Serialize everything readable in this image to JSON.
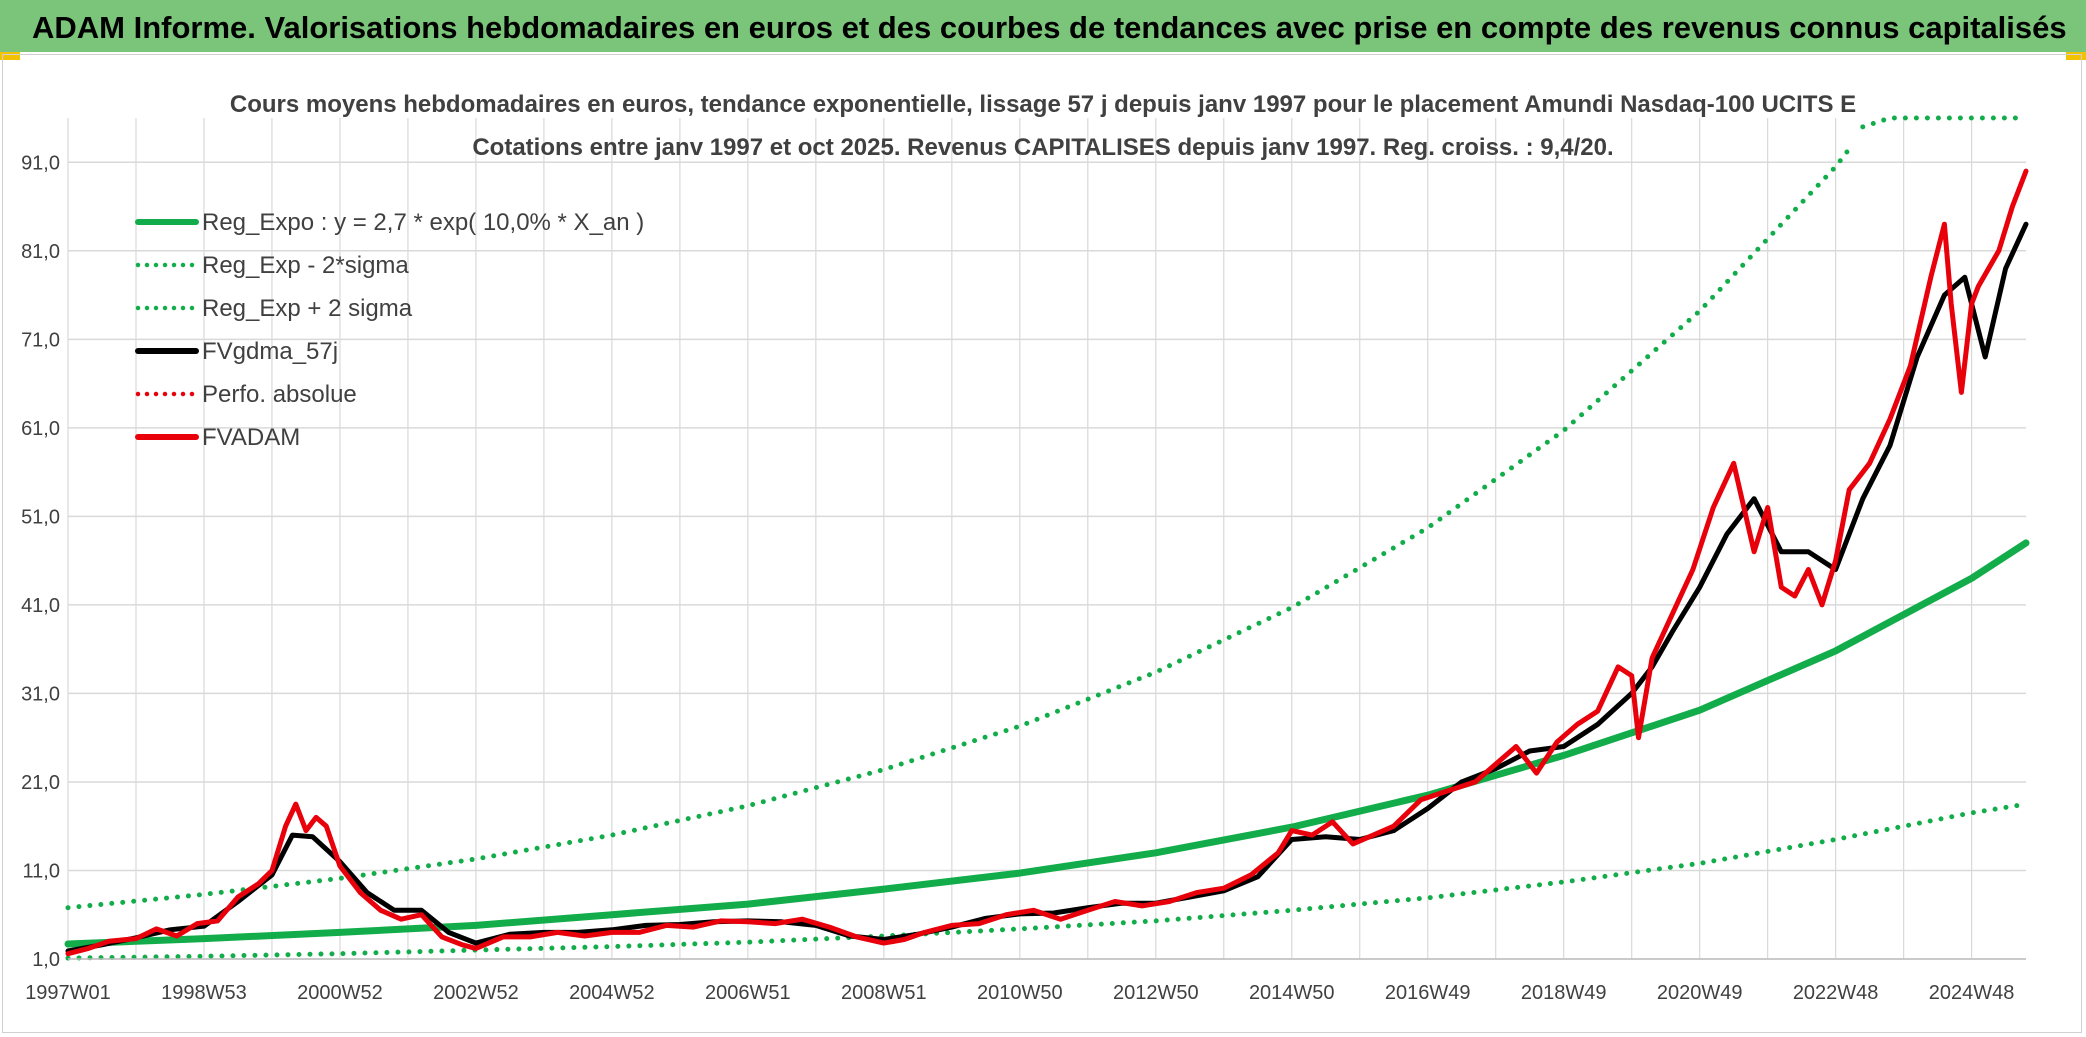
{
  "banner": {
    "title": "ADAM Informe. Valorisations hebdomadaires en euros et des courbes de tendances avec prise en compte des revenus connus capitalisés"
  },
  "colors": {
    "banner_bg": "#7ac57a",
    "green": "#12ad4a",
    "black": "#000000",
    "red": "#e8000b",
    "grid": "#d9d9d9",
    "text": "#404040"
  },
  "chart_data": {
    "type": "line",
    "title": "Cours moyens hebdomadaires en euros, tendance exponentielle, lissage 57 j depuis janv 1997 pour le placement Amundi Nasdaq-100 UCITS E",
    "subtitle": "Cotations entre janv 1997 et oct 2025. Revenus CAPITALISES depuis janv 1997. Reg. croiss. : 9,4/20.",
    "xlabel": "",
    "ylabel": "",
    "xlim": [
      1997.0,
      2025.8
    ],
    "ylim": [
      1.0,
      96.0
    ],
    "y_ticks": [
      "1,0",
      "11,0",
      "21,0",
      "31,0",
      "41,0",
      "51,0",
      "61,0",
      "71,0",
      "81,0",
      "91,0"
    ],
    "y_tick_values": [
      1,
      11,
      21,
      31,
      41,
      51,
      61,
      71,
      81,
      91
    ],
    "x_ticks": [
      "1997W01",
      "1998W53",
      "2000W52",
      "2002W52",
      "2004W52",
      "2006W51",
      "2008W51",
      "2010W50",
      "2012W50",
      "2014W50",
      "2016W49",
      "2018W49",
      "2020W49",
      "2022W48",
      "2024W48"
    ],
    "x_tick_values": [
      1997.0,
      1999.0,
      2001.0,
      2003.0,
      2005.0,
      2007.0,
      2009.0,
      2011.0,
      2013.0,
      2015.0,
      2017.0,
      2019.0,
      2021.0,
      2023.0,
      2025.0
    ],
    "legend": [
      {
        "label": "Reg_Expo : y = 2,7 * exp( 10,0% *  X_an )",
        "style": "solid",
        "color": "#12ad4a"
      },
      {
        "label": "Reg_Exp - 2*sigma",
        "style": "dotted",
        "color": "#12ad4a"
      },
      {
        "label": "Reg_Exp + 2 sigma",
        "style": "dotted",
        "color": "#12ad4a"
      },
      {
        "label": "FVgdma_57j",
        "style": "solid",
        "color": "#000000"
      },
      {
        "label": "Perfo. absolue",
        "style": "dotted",
        "color": "#e8000b"
      },
      {
        "label": "FVADAM",
        "style": "solid",
        "color": "#e8000b"
      }
    ],
    "legend_position": "top-left",
    "series": [
      {
        "name": "Reg_Expo",
        "style": "solid",
        "color": "#12ad4a",
        "x": [
          1997.0,
          1999.0,
          2001.0,
          2003.0,
          2005.0,
          2007.0,
          2009.0,
          2011.0,
          2013.0,
          2015.0,
          2017.0,
          2019.0,
          2021.0,
          2023.0,
          2025.0,
          2025.8
        ],
        "y": [
          2.7,
          3.3,
          4.0,
          4.8,
          6.0,
          7.2,
          8.9,
          10.7,
          13.0,
          15.9,
          19.5,
          24.0,
          29.1,
          35.8,
          44.0,
          48.0
        ]
      },
      {
        "name": "Reg_Exp - 2*sigma",
        "style": "dotted",
        "color": "#12ad4a",
        "x": [
          1997.0,
          1999.0,
          2001.0,
          2003.0,
          2005.0,
          2007.0,
          2009.0,
          2011.0,
          2013.0,
          2015.0,
          2017.0,
          2019.0,
          2021.0,
          2023.0,
          2025.0,
          2025.8
        ],
        "y": [
          1.1,
          1.3,
          1.6,
          2.0,
          2.4,
          2.9,
          3.6,
          4.4,
          5.3,
          6.5,
          7.9,
          9.7,
          11.8,
          14.5,
          17.5,
          18.5
        ]
      },
      {
        "name": "Reg_Exp + 2 sigma",
        "style": "dotted",
        "color": "#12ad4a",
        "x": [
          1997.0,
          1999.0,
          2001.0,
          2003.0,
          2005.0,
          2007.0,
          2009.0,
          2011.0,
          2013.0,
          2015.0,
          2017.0,
          2019.0,
          2021.0,
          2023.0,
          2023.2
        ],
        "y": [
          6.8,
          8.3,
          10.1,
          12.3,
          15.0,
          18.3,
          22.4,
          27.3,
          33.4,
          40.7,
          49.7,
          60.7,
          74.2,
          90.5,
          92.5
        ]
      },
      {
        "name": "Reg_Exp + 2 sigma (plafond)",
        "style": "dotted",
        "color": "#12ad4a",
        "x": [
          2023.4,
          2023.8,
          2025.8
        ],
        "y": [
          95.0,
          96.0,
          96.0
        ]
      },
      {
        "name": "FVgdma_57j",
        "style": "solid",
        "color": "#000000",
        "x": [
          1997.0,
          1997.5,
          1998.0,
          1998.5,
          1999.0,
          1999.5,
          2000.0,
          2000.3,
          2000.6,
          2001.0,
          2001.4,
          2001.8,
          2002.2,
          2002.6,
          2003.0,
          2003.5,
          2004.0,
          2004.5,
          2005.0,
          2005.5,
          2006.0,
          2006.5,
          2007.0,
          2007.5,
          2008.0,
          2008.5,
          2009.0,
          2009.5,
          2010.0,
          2010.5,
          2011.0,
          2011.5,
          2012.0,
          2012.5,
          2013.0,
          2013.5,
          2014.0,
          2014.5,
          2015.0,
          2015.5,
          2016.0,
          2016.5,
          2017.0,
          2017.5,
          2018.0,
          2018.5,
          2019.0,
          2019.5,
          2020.0,
          2020.3,
          2020.6,
          2021.0,
          2021.4,
          2021.8,
          2022.2,
          2022.6,
          2023.0,
          2023.4,
          2023.8,
          2024.2,
          2024.6,
          2024.9,
          2025.2,
          2025.5,
          2025.8
        ],
        "y": [
          1.9,
          2.6,
          3.4,
          4.3,
          4.7,
          7.5,
          10.5,
          15.0,
          14.8,
          12.0,
          8.5,
          6.5,
          6.5,
          4.0,
          2.8,
          3.8,
          4.0,
          4.0,
          4.3,
          4.8,
          4.9,
          5.2,
          5.3,
          5.2,
          4.8,
          3.6,
          3.2,
          3.8,
          4.6,
          5.6,
          6.1,
          6.2,
          6.8,
          7.3,
          7.3,
          8.0,
          8.7,
          10.3,
          14.5,
          14.8,
          14.5,
          15.5,
          18.0,
          21.0,
          22.5,
          24.5,
          25.0,
          27.5,
          31.0,
          34.0,
          38.0,
          43.0,
          49.0,
          53.0,
          47.0,
          47.0,
          45.0,
          53.0,
          59.0,
          69.0,
          76.0,
          78.0,
          69.0,
          79.0,
          84.0
        ]
      },
      {
        "name": "FVADAM",
        "style": "solid",
        "color": "#e8000b",
        "x": [
          1997.0,
          1997.3,
          1997.6,
          1998.0,
          1998.3,
          1998.6,
          1998.9,
          1999.2,
          1999.5,
          1999.8,
          2000.0,
          2000.2,
          2000.35,
          2000.5,
          2000.65,
          2000.8,
          2001.0,
          2001.3,
          2001.6,
          2001.9,
          2002.2,
          2002.5,
          2002.8,
          2003.0,
          2003.4,
          2003.8,
          2004.2,
          2004.6,
          2005.0,
          2005.4,
          2005.8,
          2006.2,
          2006.6,
          2007.0,
          2007.4,
          2007.8,
          2008.2,
          2008.6,
          2009.0,
          2009.3,
          2009.6,
          2010.0,
          2010.4,
          2010.8,
          2011.2,
          2011.6,
          2012.0,
          2012.4,
          2012.8,
          2013.2,
          2013.6,
          2014.0,
          2014.4,
          2014.8,
          2015.0,
          2015.3,
          2015.6,
          2015.9,
          2016.2,
          2016.5,
          2016.9,
          2017.3,
          2017.7,
          2018.0,
          2018.3,
          2018.6,
          2018.9,
          2019.2,
          2019.5,
          2019.8,
          2020.0,
          2020.1,
          2020.3,
          2020.6,
          2020.9,
          2021.2,
          2021.5,
          2021.8,
          2022.0,
          2022.2,
          2022.4,
          2022.6,
          2022.8,
          2023.0,
          2023.2,
          2023.5,
          2023.8,
          2024.1,
          2024.4,
          2024.6,
          2024.7,
          2024.85,
          2025.0,
          2025.1,
          2025.25,
          2025.4,
          2025.6,
          2025.8
        ],
        "y": [
          1.6,
          2.2,
          3.0,
          3.3,
          4.4,
          3.6,
          5.0,
          5.3,
          8.0,
          9.5,
          11.0,
          16.0,
          18.5,
          15.5,
          17.0,
          16.0,
          11.5,
          8.5,
          6.5,
          5.5,
          6.0,
          3.5,
          2.6,
          2.2,
          3.5,
          3.5,
          4.0,
          3.6,
          4.0,
          4.0,
          4.8,
          4.6,
          5.3,
          5.2,
          5.0,
          5.5,
          4.6,
          3.5,
          2.8,
          3.2,
          4.0,
          4.8,
          5.0,
          6.0,
          6.5,
          5.5,
          6.5,
          7.5,
          7.0,
          7.5,
          8.5,
          9.0,
          10.5,
          13.0,
          15.5,
          15.0,
          16.5,
          14.0,
          15.0,
          16.0,
          19.0,
          20.0,
          21.0,
          23.0,
          25.0,
          22.0,
          25.5,
          27.5,
          29.0,
          34.0,
          33.0,
          26.0,
          35.0,
          40.0,
          45.0,
          52.0,
          57.0,
          47.0,
          52.0,
          43.0,
          42.0,
          45.0,
          41.0,
          46.0,
          54.0,
          57.0,
          62.0,
          68.0,
          78.0,
          84.0,
          75.0,
          65.0,
          75.0,
          77.0,
          79.0,
          81.0,
          86.0,
          90.0
        ]
      }
    ]
  }
}
